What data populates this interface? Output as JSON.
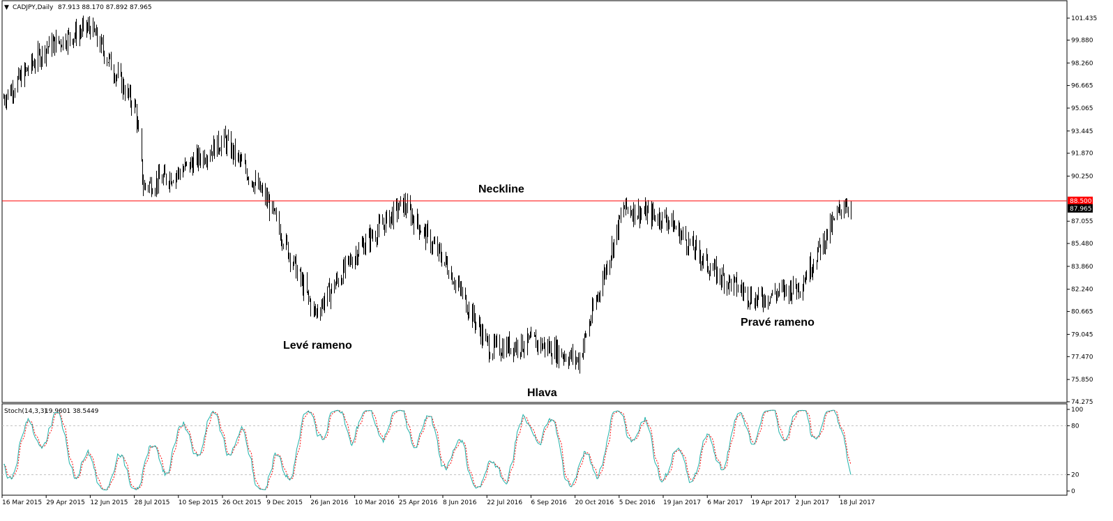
{
  "header": {
    "symbol": "CADJPY,Daily",
    "ohlc": "87.913 88.170 87.892 87.965"
  },
  "indicator": {
    "label": "Stoch(14,3,3)",
    "values": "19.9601 38.5449"
  },
  "colors": {
    "background": "#ffffff",
    "bars": "#000000",
    "neckline": "#ff0000",
    "stoch_main": "#20b2aa",
    "stoch_signal": "#ff0000",
    "grid_dash": "#c0c0c0",
    "price_tag_neckline": "#ff0000",
    "price_tag_current": "#000000"
  },
  "chart_data": [
    {
      "type": "ohlc",
      "yscale_ticks": [
        "101.435",
        "99.880",
        "98.260",
        "96.665",
        "95.065",
        "93.445",
        "91.870",
        "90.250",
        "87.055",
        "85.480",
        "83.860",
        "82.240",
        "80.665",
        "79.045",
        "77.470",
        "75.850",
        "74.275"
      ],
      "ylim": [
        74.275,
        101.435
      ],
      "x_ticks": [
        "16 Mar 2015",
        "29 Apr 2015",
        "12 Jun 2015",
        "28 Jul 2015",
        "10 Sep 2015",
        "26 Oct 2015",
        "9 Dec 2015",
        "26 Jan 2016",
        "10 Mar 2016",
        "25 Apr 2016",
        "8 Jun 2016",
        "22 Jul 2016",
        "6 Sep 2016",
        "20 Oct 2016",
        "5 Dec 2016",
        "19 Jan 2017",
        "6 Mar 2017",
        "19 Apr 2017",
        "2 Jun 2017",
        "18 Jul 2017"
      ],
      "horizontal_lines": [
        {
          "label": "Neckline",
          "value": 88.5,
          "tag": "88.500"
        }
      ],
      "current_price_tag": "87.965",
      "annotations": [
        "Neckline",
        "Levé rameno",
        "Hlava",
        "Pravé rameno"
      ],
      "key_points": [
        {
          "x": "16 Mar 2015",
          "y": 95.8
        },
        {
          "x": "29 Apr 2015",
          "y": 99.4
        },
        {
          "x": "12 Jun 2015",
          "y": 100.8
        },
        {
          "x": "28 Jul 2015",
          "y": 95.0
        },
        {
          "x": "5 Aug 2015",
          "y": 89.5
        },
        {
          "x": "10 Sep 2015",
          "y": 90.5
        },
        {
          "x": "26 Oct 2015",
          "y": 92.8
        },
        {
          "x": "9 Dec 2015",
          "y": 88.5
        },
        {
          "x": "26 Jan 2016",
          "y": 80.5
        },
        {
          "x": "10 Mar 2016",
          "y": 85.0
        },
        {
          "x": "25 Apr 2016",
          "y": 88.3
        },
        {
          "x": "8 Jun 2016",
          "y": 84.0
        },
        {
          "x": "22 Jul 2016",
          "y": 78.0
        },
        {
          "x": "6 Sep 2016",
          "y": 78.5
        },
        {
          "x": "20 Oct 2016",
          "y": 77.2
        },
        {
          "x": "5 Dec 2016",
          "y": 88.0
        },
        {
          "x": "19 Jan 2017",
          "y": 87.2
        },
        {
          "x": "6 Mar 2017",
          "y": 83.5
        },
        {
          "x": "19 Apr 2017",
          "y": 81.5
        },
        {
          "x": "2 Jun 2017",
          "y": 82.5
        },
        {
          "x": "18 Jul 2017",
          "y": 88.5
        },
        {
          "x": "24 Jul 2017",
          "y": 87.965
        }
      ]
    },
    {
      "type": "line",
      "name": "Stoch(14,3,3)",
      "ylim": [
        0,
        100
      ],
      "yscale_ticks": [
        "100",
        "80",
        "20",
        "0"
      ],
      "levels": [
        80,
        20
      ],
      "key_points": [
        {
          "x": "16 Mar 2015",
          "y": 35
        },
        {
          "x": "29 Apr 2015",
          "y": 85
        },
        {
          "x": "12 Jun 2015",
          "y": 15
        },
        {
          "x": "28 Jul 2015",
          "y": 20
        },
        {
          "x": "10 Sep 2015",
          "y": 60
        },
        {
          "x": "26 Oct 2015",
          "y": 78
        },
        {
          "x": "9 Dec 2015",
          "y": 5
        },
        {
          "x": "26 Jan 2016",
          "y": 92
        },
        {
          "x": "10 Mar 2016",
          "y": 85
        },
        {
          "x": "25 Apr 2016",
          "y": 90
        },
        {
          "x": "8 Jun 2016",
          "y": 50
        },
        {
          "x": "22 Jul 2016",
          "y": 10
        },
        {
          "x": "6 Sep 2016",
          "y": 88
        },
        {
          "x": "20 Oct 2016",
          "y": 12
        },
        {
          "x": "5 Dec 2016",
          "y": 95
        },
        {
          "x": "19 Jan 2017",
          "y": 25
        },
        {
          "x": "6 Mar 2017",
          "y": 45
        },
        {
          "x": "19 Apr 2017",
          "y": 90
        },
        {
          "x": "2 Jun 2017",
          "y": 88
        },
        {
          "x": "18 Jul 2017",
          "y": 85
        },
        {
          "x": "24 Jul 2017",
          "y": 19.9601
        }
      ]
    }
  ]
}
